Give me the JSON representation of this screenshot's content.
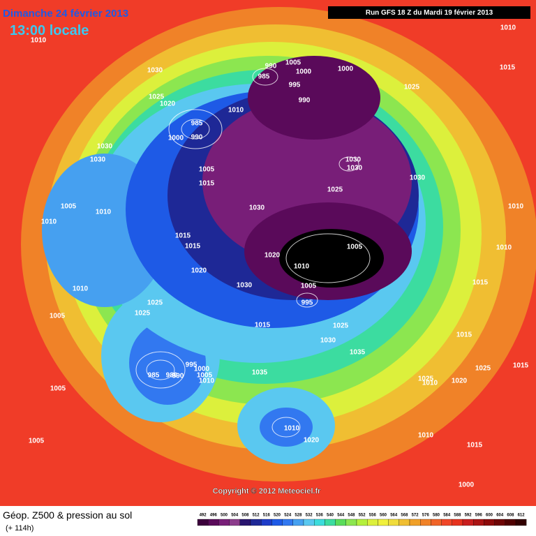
{
  "header": {
    "date": "Dimanche 24 février 2013",
    "time": "13:00 locale",
    "run": "Run GFS 18 Z du Mardi 19 février 2013"
  },
  "copyright": "Copyright © 2012 Meteociel.fr",
  "footer": {
    "title": "Géop. Z500 & pression au sol",
    "lead": "(+ 114h)"
  },
  "scale": {
    "labels": [
      "492",
      "496",
      "500",
      "504",
      "508",
      "512",
      "516",
      "520",
      "524",
      "528",
      "532",
      "536",
      "540",
      "544",
      "548",
      "552",
      "556",
      "560",
      "564",
      "568",
      "572",
      "576",
      "580",
      "584",
      "588",
      "592",
      "596",
      "600",
      "604",
      "608",
      "612"
    ],
    "colors": [
      "#3c003c",
      "#5a0a5a",
      "#781e78",
      "#8c3c8c",
      "#28146e",
      "#1e2896",
      "#1e3cc8",
      "#1e5ae6",
      "#3278f0",
      "#46a0f0",
      "#5ac8f0",
      "#3cdcdc",
      "#3cdca0",
      "#5adc5a",
      "#8ce650",
      "#b4f03c",
      "#dcf03c",
      "#f0f03c",
      "#f0dc3c",
      "#f0be32",
      "#f0a028",
      "#f08228",
      "#f06428",
      "#f04628",
      "#e6321e",
      "#c81e1e",
      "#aa1414",
      "#8c0a0a",
      "#6e0505",
      "#500000",
      "#320000"
    ]
  },
  "map_labels": [
    "1010",
    "1030",
    "1025",
    "1020",
    "985",
    "1000",
    "990",
    "1010",
    "990",
    "1005",
    "985",
    "1000",
    "995",
    "990",
    "1000",
    "1025",
    "1010",
    "1015",
    "1030",
    "1030",
    "1005",
    "1015",
    "1030",
    "1030",
    "1025",
    "1030",
    "1030",
    "1005",
    "1010",
    "1010",
    "1010",
    "1015",
    "1015",
    "1010",
    "1020",
    "1010",
    "1005",
    "1020",
    "1030",
    "1005",
    "995",
    "1015",
    "1010",
    "1025",
    "1025",
    "1005",
    "1015",
    "1025",
    "1030",
    "1035",
    "1015",
    "1015",
    "1025",
    "995",
    "1000",
    "985",
    "980",
    "990",
    "1005",
    "1010",
    "1035",
    "1025",
    "1010",
    "1020",
    "1005",
    "1010",
    "1020",
    "1010",
    "1015",
    "1005",
    "1000"
  ]
}
